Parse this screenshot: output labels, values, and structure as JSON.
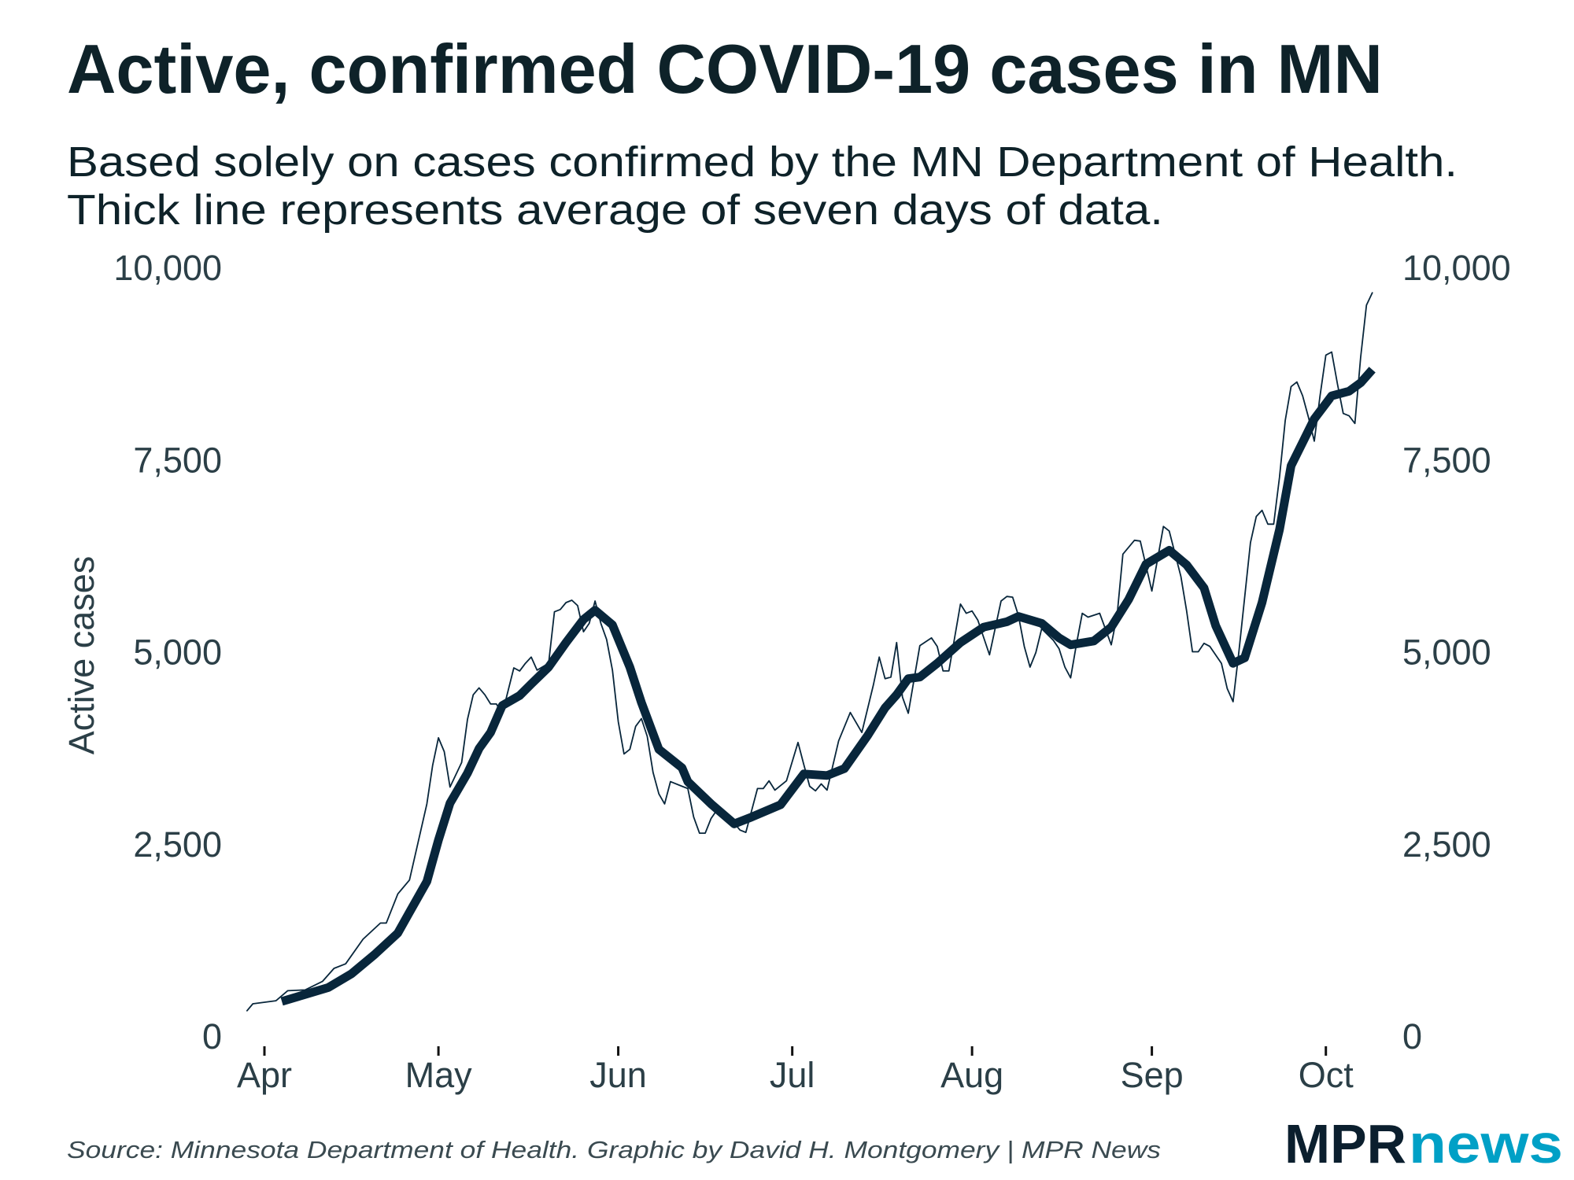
{
  "chart_data": {
    "type": "line",
    "title": "Active, confirmed COVID-19 cases in MN",
    "subtitle": [
      "Based solely on cases confirmed by the MN Department of Health.",
      "Thick line represents average of seven days of data."
    ],
    "ylabel": "Active cases",
    "xlabel": "",
    "ylim": [
      0,
      10000
    ],
    "yticks": [
      "0",
      "2,500",
      "5,000",
      "7,500",
      "10,000"
    ],
    "ytick_values": [
      0,
      2500,
      5000,
      7500,
      10000
    ],
    "xticks": [
      "Apr",
      "May",
      "Jun",
      "Jul",
      "Aug",
      "Sep",
      "Oct"
    ],
    "xtick_dates": [
      "Apr 1",
      "May 1",
      "Jun 1",
      "Jul 1",
      "Aug 1",
      "Sep 1",
      "Oct 1"
    ],
    "grid": false,
    "line_color": "#08263b",
    "series": [
      {
        "style": "thin",
        "points": [
          [
            "Mar 29",
            330
          ],
          [
            "Mar 30",
            420
          ],
          [
            "Apr 3",
            460
          ],
          [
            "Apr 5",
            590
          ],
          [
            "Apr 8",
            600
          ],
          [
            "Apr 11",
            710
          ],
          [
            "Apr 13",
            880
          ],
          [
            "Apr 15",
            940
          ],
          [
            "Apr 18",
            1260
          ],
          [
            "Apr 21",
            1470
          ],
          [
            "Apr 22",
            1470
          ],
          [
            "Apr 24",
            1850
          ],
          [
            "Apr 26",
            2030
          ],
          [
            "Apr 29",
            3020
          ],
          [
            "Apr 30",
            3520
          ],
          [
            "May 1",
            3880
          ],
          [
            "May 2",
            3700
          ],
          [
            "May 3",
            3240
          ],
          [
            "May 5",
            3560
          ],
          [
            "May 6",
            4120
          ],
          [
            "May 7",
            4440
          ],
          [
            "May 8",
            4530
          ],
          [
            "May 9",
            4440
          ],
          [
            "May 10",
            4320
          ],
          [
            "May 11",
            4320
          ],
          [
            "May 12",
            4190
          ],
          [
            "May 14",
            4790
          ],
          [
            "May 15",
            4750
          ],
          [
            "May 16",
            4850
          ],
          [
            "May 17",
            4930
          ],
          [
            "May 18",
            4760
          ],
          [
            "May 20",
            4850
          ],
          [
            "May 21",
            5520
          ],
          [
            "May 22",
            5550
          ],
          [
            "May 23",
            5640
          ],
          [
            "May 24",
            5670
          ],
          [
            "May 25",
            5600
          ],
          [
            "May 26",
            5260
          ],
          [
            "May 27",
            5370
          ],
          [
            "May 28",
            5660
          ],
          [
            "May 29",
            5370
          ],
          [
            "May 30",
            5160
          ],
          [
            "May 31",
            4760
          ],
          [
            "Jun 1",
            4090
          ],
          [
            "Jun 2",
            3670
          ],
          [
            "Jun 3",
            3730
          ],
          [
            "Jun 4",
            4030
          ],
          [
            "Jun 5",
            4130
          ],
          [
            "Jun 6",
            3900
          ],
          [
            "Jun 7",
            3430
          ],
          [
            "Jun 8",
            3150
          ],
          [
            "Jun 9",
            3020
          ],
          [
            "Jun 10",
            3310
          ],
          [
            "Jun 12",
            3250
          ],
          [
            "Jun 13",
            3220
          ],
          [
            "Jun 14",
            2850
          ],
          [
            "Jun 15",
            2640
          ],
          [
            "Jun 16",
            2640
          ],
          [
            "Jun 17",
            2830
          ],
          [
            "Jun 18",
            2940
          ],
          [
            "Jun 20",
            2860
          ],
          [
            "Jun 22",
            2680
          ],
          [
            "Jun 23",
            2650
          ],
          [
            "Jun 25",
            3220
          ],
          [
            "Jun 26",
            3220
          ],
          [
            "Jun 27",
            3320
          ],
          [
            "Jun 28",
            3200
          ],
          [
            "Jun 30",
            3320
          ],
          [
            "Jul 2",
            3820
          ],
          [
            "Jul 3",
            3530
          ],
          [
            "Jul 4",
            3250
          ],
          [
            "Jul 5",
            3190
          ],
          [
            "Jul 6",
            3280
          ],
          [
            "Jul 7",
            3200
          ],
          [
            "Jul 9",
            3840
          ],
          [
            "Jul 11",
            4210
          ],
          [
            "Jul 13",
            3950
          ],
          [
            "Jul 15",
            4570
          ],
          [
            "Jul 16",
            4930
          ],
          [
            "Jul 17",
            4650
          ],
          [
            "Jul 18",
            4670
          ],
          [
            "Jul 19",
            5120
          ],
          [
            "Jul 20",
            4410
          ],
          [
            "Jul 21",
            4200
          ],
          [
            "Jul 23",
            5080
          ],
          [
            "Jul 25",
            5180
          ],
          [
            "Jul 26",
            5070
          ],
          [
            "Jul 27",
            4750
          ],
          [
            "Jul 28",
            4750
          ],
          [
            "Jul 30",
            5620
          ],
          [
            "Jul 31",
            5500
          ],
          [
            "Aug 1",
            5530
          ],
          [
            "Aug 2",
            5410
          ],
          [
            "Aug 4",
            4960
          ],
          [
            "Aug 6",
            5660
          ],
          [
            "Aug 7",
            5720
          ],
          [
            "Aug 8",
            5710
          ],
          [
            "Aug 9",
            5470
          ],
          [
            "Aug 10",
            5070
          ],
          [
            "Aug 11",
            4800
          ],
          [
            "Aug 12",
            4990
          ],
          [
            "Aug 13",
            5300
          ],
          [
            "Aug 15",
            5150
          ],
          [
            "Aug 16",
            5040
          ],
          [
            "Aug 17",
            4800
          ],
          [
            "Aug 18",
            4660
          ],
          [
            "Aug 19",
            5100
          ],
          [
            "Aug 20",
            5500
          ],
          [
            "Aug 21",
            5450
          ],
          [
            "Aug 23",
            5500
          ],
          [
            "Aug 25",
            5090
          ],
          [
            "Aug 26",
            5470
          ],
          [
            "Aug 27",
            6270
          ],
          [
            "Aug 29",
            6450
          ],
          [
            "Aug 30",
            6440
          ],
          [
            "Sep 1",
            5790
          ],
          [
            "Sep 3",
            6630
          ],
          [
            "Sep 4",
            6570
          ],
          [
            "Sep 6",
            5980
          ],
          [
            "Sep 7",
            5530
          ],
          [
            "Sep 8",
            5000
          ],
          [
            "Sep 9",
            5000
          ],
          [
            "Sep 10",
            5110
          ],
          [
            "Sep 11",
            5070
          ],
          [
            "Sep 13",
            4850
          ],
          [
            "Sep 14",
            4520
          ],
          [
            "Sep 15",
            4350
          ],
          [
            "Sep 16",
            5000
          ],
          [
            "Sep 18",
            6420
          ],
          [
            "Sep 19",
            6760
          ],
          [
            "Sep 20",
            6840
          ],
          [
            "Sep 21",
            6660
          ],
          [
            "Sep 22",
            6660
          ],
          [
            "Sep 23",
            7270
          ],
          [
            "Sep 24",
            8010
          ],
          [
            "Sep 25",
            8450
          ],
          [
            "Sep 26",
            8510
          ],
          [
            "Sep 27",
            8330
          ],
          [
            "Sep 28",
            8050
          ],
          [
            "Sep 29",
            7740
          ],
          [
            "Sep 30",
            8330
          ],
          [
            "Oct 1",
            8860
          ],
          [
            "Oct 2",
            8900
          ],
          [
            "Oct 3",
            8480
          ],
          [
            "Oct 4",
            8100
          ],
          [
            "Oct 5",
            8070
          ],
          [
            "Oct 6",
            7970
          ],
          [
            "Oct 7",
            8830
          ],
          [
            "Oct 8",
            9510
          ],
          [
            "Oct 9",
            9670
          ]
        ]
      },
      {
        "style": "thick",
        "points": [
          [
            "Apr 4",
            450
          ],
          [
            "Apr 12",
            630
          ],
          [
            "Apr 16",
            810
          ],
          [
            "Apr 20",
            1060
          ],
          [
            "Apr 24",
            1340
          ],
          [
            "Apr 26",
            1610
          ],
          [
            "Apr 29",
            2010
          ],
          [
            "May 1",
            2550
          ],
          [
            "May 3",
            3030
          ],
          [
            "May 6",
            3420
          ],
          [
            "May 8",
            3740
          ],
          [
            "May 10",
            3950
          ],
          [
            "May 12",
            4300
          ],
          [
            "May 15",
            4430
          ],
          [
            "May 17",
            4580
          ],
          [
            "May 20",
            4800
          ],
          [
            "May 23",
            5120
          ],
          [
            "May 26",
            5420
          ],
          [
            "May 28",
            5540
          ],
          [
            "May 31",
            5350
          ],
          [
            "Jun 3",
            4800
          ],
          [
            "Jun 5",
            4340
          ],
          [
            "Jun 8",
            3730
          ],
          [
            "Jun 12",
            3490
          ],
          [
            "Jun 13",
            3310
          ],
          [
            "Jun 17",
            3020
          ],
          [
            "Jun 21",
            2760
          ],
          [
            "Jun 24",
            2850
          ],
          [
            "Jun 29",
            3010
          ],
          [
            "Jul 3",
            3410
          ],
          [
            "Jul 7",
            3390
          ],
          [
            "Jul 10",
            3480
          ],
          [
            "Jul 14",
            3910
          ],
          [
            "Jul 17",
            4270
          ],
          [
            "Jul 19",
            4440
          ],
          [
            "Jul 21",
            4650
          ],
          [
            "Jul 23",
            4670
          ],
          [
            "Jul 26",
            4850
          ],
          [
            "Jul 30",
            5120
          ],
          [
            "Aug 3",
            5320
          ],
          [
            "Aug 7",
            5390
          ],
          [
            "Aug 9",
            5460
          ],
          [
            "Aug 13",
            5370
          ],
          [
            "Aug 16",
            5180
          ],
          [
            "Aug 18",
            5090
          ],
          [
            "Aug 22",
            5140
          ],
          [
            "Aug 25",
            5320
          ],
          [
            "Aug 28",
            5680
          ],
          [
            "Aug 31",
            6140
          ],
          [
            "Sep 4",
            6320
          ],
          [
            "Sep 7",
            6130
          ],
          [
            "Sep 10",
            5830
          ],
          [
            "Sep 12",
            5340
          ],
          [
            "Sep 15",
            4850
          ],
          [
            "Sep 17",
            4920
          ],
          [
            "Sep 20",
            5640
          ],
          [
            "Sep 23",
            6590
          ],
          [
            "Sep 25",
            7420
          ],
          [
            "Sep 29",
            8030
          ],
          [
            "Oct 2",
            8330
          ],
          [
            "Oct 5",
            8390
          ],
          [
            "Oct 7",
            8500
          ],
          [
            "Oct 9",
            8670
          ]
        ]
      }
    ]
  },
  "footer": {
    "source": "Source: Minnesota Department of Health. Graphic by David H. Montgomery | MPR News",
    "logo_part1": "MPR",
    "logo_part2": "news",
    "logo_color1": "#0b1f2e",
    "logo_color2": "#00a0c6"
  }
}
